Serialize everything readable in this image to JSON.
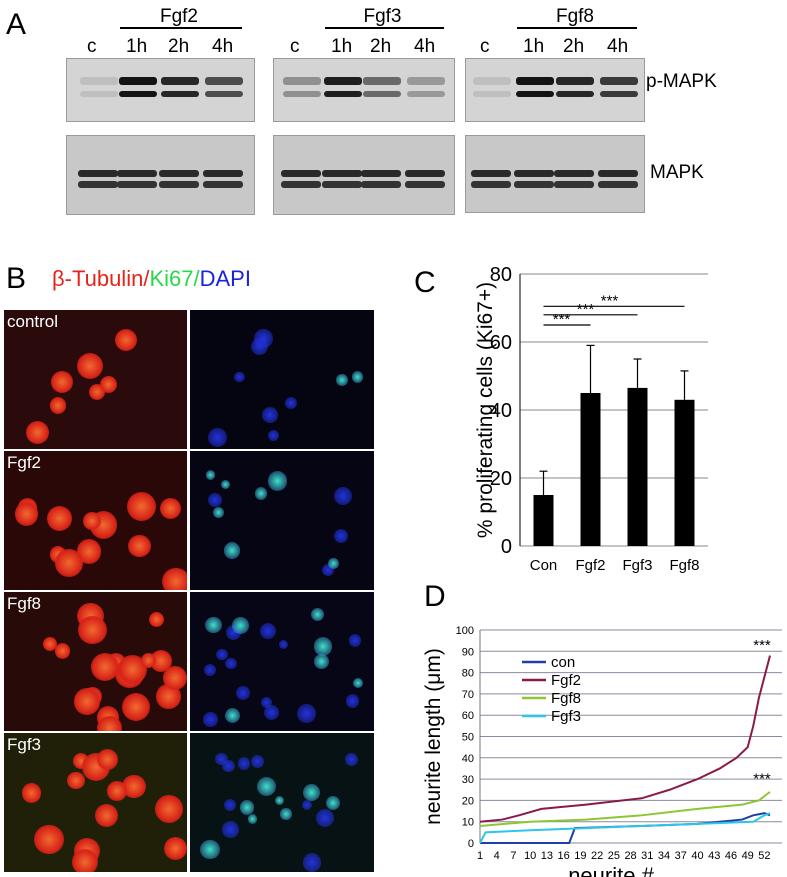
{
  "panel_a": {
    "letter": "A",
    "groups": [
      {
        "name": "Fgf2",
        "lanes": [
          "c",
          "1h",
          "2h",
          "4h"
        ]
      },
      {
        "name": "Fgf3",
        "lanes": [
          "c",
          "1h",
          "2h",
          "4h"
        ]
      },
      {
        "name": "Fgf8",
        "lanes": [
          "c",
          "1h",
          "2h",
          "4h"
        ]
      }
    ],
    "blot_labels": [
      "p-MAPK",
      "MAPK"
    ],
    "pmapk_intensity": [
      [
        0.1,
        1.0,
        0.9,
        0.7
      ],
      [
        0.35,
        0.95,
        0.55,
        0.3
      ],
      [
        0.1,
        1.0,
        0.9,
        0.8
      ]
    ]
  },
  "panel_b": {
    "letter": "B",
    "stain_title": {
      "part1": "β-Tubulin",
      "sep1": "/",
      "part2": "Ki67",
      "sep2": "/",
      "part3": "DAPI"
    },
    "rows": [
      "control",
      "Fgf2",
      "Fgf8",
      "Fgf3"
    ],
    "colors": {
      "tubulin": "#e8221a",
      "ki67": "#27d94a",
      "dapi": "#1a22e0"
    }
  },
  "chart_data": [
    {
      "panel": "C",
      "type": "bar",
      "ylabel": "% proliferating cells (Ki67+)",
      "categories": [
        "Con",
        "Fgf2",
        "Fgf3",
        "Fgf8"
      ],
      "values": [
        15,
        45,
        46.5,
        43
      ],
      "errors": [
        7,
        14,
        8.5,
        8.5
      ],
      "ylim": [
        0,
        80
      ],
      "yticks": [
        0,
        20,
        40,
        60,
        80
      ],
      "significance": [
        "***",
        "***",
        "***"
      ],
      "grid": true
    },
    {
      "panel": "D",
      "type": "line",
      "ylabel": "neurite length (μm)",
      "xlabel": "neurite #",
      "ylim": [
        0,
        100
      ],
      "yticks": [
        0,
        10,
        20,
        30,
        40,
        50,
        60,
        70,
        80,
        90,
        100
      ],
      "xticks": [
        "1",
        "4",
        "7",
        "10",
        "13",
        "16",
        "19",
        "22",
        "25",
        "28",
        "31",
        "34",
        "37",
        "40",
        "43",
        "46",
        "49",
        "52"
      ],
      "annotations": [
        "***",
        "***"
      ],
      "legend_position": "upper-left",
      "grid": true,
      "series": [
        {
          "name": "con",
          "color": "#1f3fa8",
          "x": [
            1,
            17,
            18,
            30,
            40,
            48,
            50,
            52,
            53
          ],
          "y": [
            0,
            0,
            7,
            8,
            9,
            11,
            13,
            14,
            13
          ]
        },
        {
          "name": "Fgf2",
          "color": "#8b1a4a",
          "x": [
            1,
            5,
            8,
            12,
            20,
            30,
            35,
            40,
            44,
            47,
            49,
            50,
            51,
            52,
            53
          ],
          "y": [
            10,
            11,
            13,
            16,
            18,
            21,
            25,
            30,
            35,
            40,
            45,
            55,
            68,
            78,
            88
          ]
        },
        {
          "name": "Fgf8",
          "color": "#8ec632",
          "x": [
            1,
            10,
            20,
            30,
            40,
            48,
            51,
            52,
            53
          ],
          "y": [
            8,
            10,
            11,
            13,
            16,
            18,
            20,
            22,
            24
          ]
        },
        {
          "name": "Fgf3",
          "color": "#2ec6e8",
          "x": [
            1,
            2,
            10,
            20,
            30,
            40,
            50,
            52,
            53
          ],
          "y": [
            0,
            5,
            6,
            7,
            8,
            9,
            10,
            13,
            14
          ]
        }
      ]
    }
  ]
}
